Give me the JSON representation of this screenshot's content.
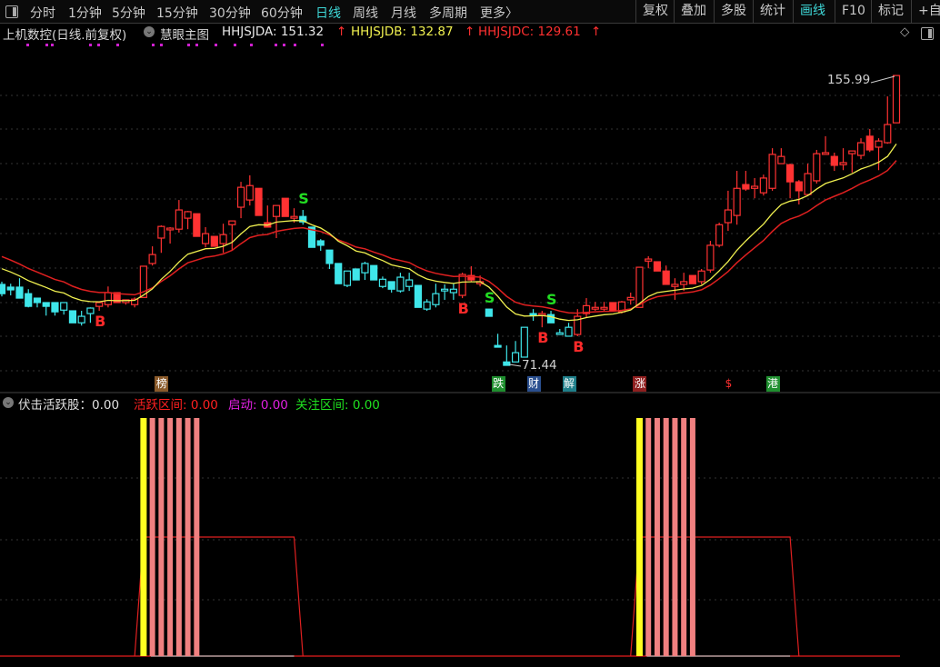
{
  "toolbar": {
    "tabs": [
      "分时",
      "1分钟",
      "5分钟",
      "15分钟",
      "30分钟",
      "60分钟",
      "日线",
      "周线",
      "月线",
      "多周期",
      "更多〉"
    ],
    "active_tab": "日线",
    "right_buttons": [
      "复权",
      "叠加",
      "多股",
      "统计",
      "画线",
      "F10",
      "标记",
      "+自"
    ],
    "active_right": "画线"
  },
  "main_legend": {
    "stock": "上机数控(日线.前复权)",
    "indicator": "慧眼主图",
    "a": "HHJSJDA: 151.32",
    "b": "HHJSJDB: 132.87",
    "c": "HHJSJDC: 129.61",
    "arrow": "↑"
  },
  "sub_legend": {
    "name": "伏击活跃股：0.00",
    "active": "活跃区间: 0.00",
    "start": "启动: 0.00",
    "watch": "关注区间: 0.00"
  },
  "colors": {
    "up": "#ff3232",
    "down": "#3fe6ea",
    "ma_yellow": "#f0f050",
    "ma_red": "#e02020",
    "bg": "#000000",
    "signal_buy": "#ff2a2a",
    "signal_sell": "#22dd22"
  },
  "chart_data": {
    "type": "candlestick",
    "ylim": [
      64.1,
      178
    ],
    "max_label": "155.99",
    "min_label": "71.44",
    "candle_fields": [
      "open",
      "high",
      "low",
      "close",
      "red"
    ],
    "candles": [
      [
        95.1,
        95.9,
        91.6,
        92.4,
        0
      ],
      [
        94.3,
        95.3,
        91.9,
        93.5,
        0
      ],
      [
        94.3,
        96.9,
        91.1,
        91.1,
        0
      ],
      [
        92.4,
        93.7,
        88.4,
        88.7,
        0
      ],
      [
        91.1,
        91.1,
        88.4,
        89.8,
        0
      ],
      [
        89.8,
        89.8,
        86.0,
        88.7,
        0
      ],
      [
        89.8,
        89.8,
        86.0,
        87.1,
        0
      ],
      [
        87.6,
        89.8,
        86.3,
        89.8,
        0
      ],
      [
        87.4,
        87.4,
        83.9,
        83.9,
        0
      ],
      [
        83.9,
        87.4,
        83.1,
        85.8,
        0
      ],
      [
        86.6,
        88.4,
        83.9,
        88.2,
        0
      ],
      [
        88.7,
        89.8,
        87.4,
        89.8,
        1
      ],
      [
        89.2,
        94.5,
        88.4,
        92.7,
        1
      ],
      [
        92.7,
        92.7,
        89.8,
        89.8,
        1
      ],
      [
        89.8,
        90.6,
        89.2,
        90.6,
        1
      ],
      [
        89.2,
        91.3,
        88.4,
        90.8,
        1
      ],
      [
        91.3,
        100.4,
        91.3,
        100.4,
        1
      ],
      [
        101.2,
        106.2,
        100.6,
        103.8,
        1
      ],
      [
        108.6,
        112.3,
        104.3,
        112.0,
        1
      ],
      [
        111.0,
        111.8,
        107.0,
        111.5,
        1
      ],
      [
        111.2,
        119.7,
        110.2,
        116.8,
        1
      ],
      [
        114.4,
        116.5,
        111.2,
        116.3,
        1
      ],
      [
        115.7,
        115.7,
        109.1,
        109.1,
        1
      ],
      [
        107.0,
        111.8,
        105.9,
        109.9,
        1
      ],
      [
        109.1,
        109.1,
        106.2,
        106.2,
        1
      ],
      [
        107.0,
        112.8,
        104.3,
        109.6,
        1
      ],
      [
        112.5,
        113.6,
        104.9,
        113.6,
        1
      ],
      [
        117.6,
        125.0,
        114.4,
        123.4,
        1
      ],
      [
        119.7,
        126.9,
        118.1,
        123.9,
        1
      ],
      [
        123.1,
        123.1,
        115.2,
        115.2,
        1
      ],
      [
        113.1,
        118.1,
        111.8,
        111.8,
        1
      ],
      [
        114.9,
        118.1,
        108.6,
        118.1,
        1
      ],
      [
        120.2,
        120.2,
        114.9,
        114.9,
        1
      ],
      [
        114.4,
        117.3,
        113.1,
        114.9,
        1
      ],
      [
        114.9,
        116.8,
        112.5,
        113.3,
        0
      ],
      [
        111.8,
        111.8,
        105.9,
        105.9,
        0
      ],
      [
        107.8,
        108.3,
        104.9,
        106.5,
        0
      ],
      [
        105.1,
        105.1,
        99.6,
        101.2,
        0
      ],
      [
        101.2,
        101.2,
        95.3,
        95.3,
        0
      ],
      [
        94.8,
        99.0,
        94.3,
        99.0,
        0
      ],
      [
        99.6,
        99.6,
        96.4,
        96.4,
        0
      ],
      [
        98.5,
        101.7,
        96.4,
        101.2,
        0
      ],
      [
        100.6,
        100.6,
        96.4,
        96.4,
        0
      ],
      [
        94.5,
        97.4,
        94.0,
        96.6,
        0
      ],
      [
        95.9,
        95.9,
        92.7,
        93.7,
        0
      ],
      [
        93.2,
        98.5,
        92.7,
        97.2,
        0
      ],
      [
        94.5,
        98.5,
        93.2,
        96.4,
        0
      ],
      [
        94.8,
        94.8,
        88.4,
        88.4,
        0
      ],
      [
        87.9,
        90.8,
        87.4,
        90.0,
        0
      ],
      [
        89.2,
        95.3,
        88.4,
        92.4,
        0
      ],
      [
        93.2,
        95.1,
        90.6,
        93.7,
        0
      ],
      [
        92.7,
        95.3,
        90.6,
        93.7,
        0
      ],
      [
        91.9,
        98.5,
        91.1,
        98.0,
        1
      ],
      [
        97.7,
        100.4,
        95.9,
        96.4,
        1
      ],
      [
        95.3,
        97.7,
        94.5,
        95.9,
        1
      ],
      [
        87.9,
        87.9,
        85.8,
        85.8,
        0
      ],
      [
        77.3,
        80.7,
        76.8,
        76.8,
        0
      ],
      [
        72.5,
        77.3,
        71.44,
        71.5,
        0
      ],
      [
        72.5,
        78.6,
        72.5,
        75.2,
        0
      ],
      [
        73.9,
        82.6,
        73.9,
        82.6,
        0
      ],
      [
        86.6,
        87.9,
        84.5,
        86.1,
        0
      ],
      [
        86.1,
        87.4,
        82.6,
        86.6,
        1
      ],
      [
        86.3,
        87.4,
        83.9,
        83.9,
        0
      ],
      [
        80.5,
        82.1,
        80.5,
        81.0,
        0
      ],
      [
        80.0,
        83.9,
        80.0,
        82.6,
        0
      ],
      [
        80.5,
        87.9,
        80.0,
        85.8,
        1
      ],
      [
        86.6,
        91.1,
        85.3,
        88.9,
        1
      ],
      [
        87.9,
        90.0,
        87.4,
        88.4,
        1
      ],
      [
        87.9,
        90.0,
        87.4,
        88.4,
        1
      ],
      [
        89.8,
        89.8,
        87.4,
        87.4,
        1
      ],
      [
        87.1,
        90.3,
        86.6,
        90.0,
        1
      ],
      [
        90.6,
        92.7,
        89.2,
        91.3,
        1
      ],
      [
        88.4,
        100.1,
        88.4,
        100.1,
        1
      ],
      [
        101.9,
        103.3,
        99.8,
        102.5,
        1
      ],
      [
        101.7,
        101.7,
        99.0,
        99.0,
        1
      ],
      [
        99.0,
        100.6,
        95.1,
        95.1,
        1
      ],
      [
        94.5,
        96.9,
        90.6,
        95.1,
        1
      ],
      [
        95.1,
        98.5,
        93.2,
        95.9,
        1
      ],
      [
        97.7,
        97.7,
        95.3,
        95.3,
        1
      ],
      [
        95.9,
        99.6,
        95.1,
        99.0,
        1
      ],
      [
        99.3,
        107.8,
        98.5,
        106.5,
        1
      ],
      [
        106.5,
        113.1,
        105.9,
        112.5,
        1
      ],
      [
        113.1,
        122.4,
        110.7,
        116.8,
        1
      ],
      [
        115.2,
        128.2,
        112.5,
        123.1,
        1
      ],
      [
        124.2,
        128.2,
        122.4,
        122.9,
        1
      ],
      [
        123.1,
        126.1,
        120.2,
        123.7,
        1
      ],
      [
        121.8,
        127.1,
        121.0,
        126.1,
        1
      ],
      [
        123.1,
        134.8,
        122.4,
        133.0,
        1
      ],
      [
        130.3,
        134.8,
        130.3,
        132.4,
        1
      ],
      [
        130.0,
        130.3,
        120.2,
        125.0,
        1
      ],
      [
        125.0,
        125.5,
        118.4,
        122.4,
        1
      ],
      [
        121.3,
        130.3,
        121.0,
        127.4,
        1
      ],
      [
        125.3,
        134.3,
        124.5,
        133.2,
        1
      ],
      [
        133.0,
        138.3,
        133.0,
        133.5,
        1
      ],
      [
        132.4,
        133.5,
        128.2,
        129.8,
        1
      ],
      [
        130.0,
        134.8,
        128.4,
        130.6,
        1
      ],
      [
        133.2,
        134.0,
        127.7,
        134.0,
        1
      ],
      [
        132.7,
        137.7,
        131.6,
        136.4,
        1
      ],
      [
        138.3,
        140.4,
        133.7,
        134.3,
        1
      ],
      [
        135.1,
        137.7,
        128.4,
        136.9,
        1
      ],
      [
        136.4,
        149.9,
        136.1,
        141.7,
        1
      ],
      [
        142.2,
        155.99,
        142.2,
        155.99,
        1
      ]
    ],
    "signals": [
      {
        "index": 11,
        "label": "B",
        "type": "buy"
      },
      {
        "index": 34,
        "label": "S",
        "type": "sell"
      },
      {
        "index": 52,
        "label": "B",
        "type": "buy"
      },
      {
        "index": 55,
        "label": "S",
        "type": "sell"
      },
      {
        "index": 61,
        "label": "B",
        "type": "buy"
      },
      {
        "index": 62,
        "label": "S",
        "type": "sell"
      },
      {
        "index": 65,
        "label": "B",
        "type": "buy"
      }
    ],
    "events": [
      {
        "index": 18,
        "label": "榜",
        "color": "#8a5a2a"
      },
      {
        "index": 56,
        "label": "跌",
        "color": "#1f8f2f"
      },
      {
        "index": 60,
        "label": "财",
        "color": "#2a4f8f"
      },
      {
        "index": 64,
        "label": "解",
        "color": "#1f7f8a"
      },
      {
        "index": 72,
        "label": "涨",
        "color": "#8f1f1f"
      },
      {
        "index": 82,
        "label": "$",
        "color": ""
      },
      {
        "index": 87,
        "label": "港",
        "color": "#1f8f2f"
      }
    ],
    "sub": {
      "start_bars": [
        16,
        72
      ],
      "active_bars": [
        [
          17,
          18,
          19,
          20,
          21,
          22
        ],
        [
          73,
          74,
          75,
          76,
          77,
          78
        ]
      ],
      "active_zones": [
        {
          "from": 15,
          "top_from": 16,
          "top_to": 33,
          "to": 34
        },
        {
          "from": 71,
          "top_from": 72,
          "top_to": 89,
          "to": 90
        }
      ],
      "zone_level": 0.5
    }
  }
}
